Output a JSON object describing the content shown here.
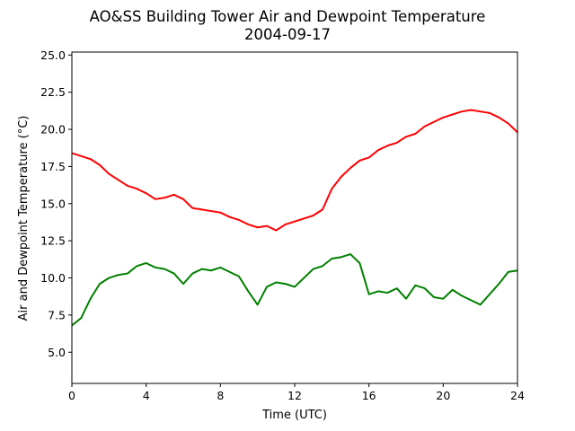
{
  "chart_data": {
    "type": "line",
    "title": "AO&SS Building Tower Air and Dewpoint Temperature",
    "subtitle": "2004-09-17",
    "xlabel": "Time (UTC)",
    "ylabel": "Air and Dewpoint Temperature (°C)",
    "xlim": [
      0,
      24
    ],
    "ylim": [
      2.9,
      25.2
    ],
    "xticks": [
      0,
      4,
      8,
      12,
      16,
      20,
      24
    ],
    "xtick_labels": [
      "0",
      "4",
      "8",
      "12",
      "16",
      "20",
      "24"
    ],
    "yticks": [
      5.0,
      7.5,
      10.0,
      12.5,
      15.0,
      17.5,
      20.0,
      22.5,
      25.0
    ],
    "ytick_labels": [
      "5.0",
      "7.5",
      "10.0",
      "12.5",
      "15.0",
      "17.5",
      "20.0",
      "22.5",
      "25.0"
    ],
    "grid": false,
    "legend": "none",
    "series": [
      {
        "color": "#ff0000",
        "x": [
          0,
          0.5,
          1,
          1.5,
          2,
          2.5,
          3,
          3.5,
          4,
          4.5,
          5,
          5.5,
          6,
          6.5,
          7,
          7.5,
          8,
          8.5,
          9,
          9.5,
          10,
          10.5,
          11,
          11.5,
          12,
          12.5,
          13,
          13.5,
          14,
          14.5,
          15,
          15.5,
          16,
          16.5,
          17,
          17.5,
          18,
          18.5,
          19,
          19.5,
          20,
          20.5,
          21,
          21.5,
          22,
          22.5,
          23,
          23.5,
          24
        ],
        "y": [
          18.4,
          18.2,
          18.0,
          17.6,
          17.0,
          16.6,
          16.2,
          16.0,
          15.7,
          15.3,
          15.4,
          15.6,
          15.3,
          14.7,
          14.6,
          14.5,
          14.4,
          14.1,
          13.9,
          13.6,
          13.4,
          13.5,
          13.2,
          13.6,
          13.8,
          14.0,
          14.2,
          14.6,
          16.0,
          16.8,
          17.4,
          17.9,
          18.1,
          18.6,
          18.9,
          19.1,
          19.5,
          19.7,
          20.2,
          20.5,
          20.8,
          21.0,
          21.2,
          21.3,
          21.2,
          21.1,
          20.8,
          20.4,
          19.8
        ]
      },
      {
        "color": "#008000",
        "x": [
          0,
          0.5,
          1,
          1.5,
          2,
          2.5,
          3,
          3.5,
          4,
          4.5,
          5,
          5.5,
          6,
          6.5,
          7,
          7.5,
          8,
          8.5,
          9,
          9.5,
          10,
          10.5,
          11,
          11.5,
          12,
          12.5,
          13,
          13.5,
          14,
          14.5,
          15,
          15.5,
          16,
          16.5,
          17,
          17.5,
          18,
          18.5,
          19,
          19.5,
          20,
          20.5,
          21,
          21.5,
          22,
          22.5,
          23,
          23.5,
          24
        ],
        "y": [
          6.8,
          7.3,
          8.6,
          9.6,
          10.0,
          10.2,
          10.3,
          10.8,
          11.0,
          10.7,
          10.6,
          10.3,
          9.6,
          10.3,
          10.6,
          10.5,
          10.7,
          10.4,
          10.1,
          9.1,
          8.2,
          9.4,
          9.7,
          9.6,
          9.4,
          10.0,
          10.6,
          10.8,
          11.3,
          11.4,
          11.6,
          11.0,
          8.9,
          9.1,
          9.0,
          9.3,
          8.6,
          9.5,
          9.3,
          8.7,
          8.6,
          9.2,
          8.8,
          8.5,
          8.2,
          8.9,
          9.6,
          10.4,
          10.5
        ]
      }
    ]
  }
}
